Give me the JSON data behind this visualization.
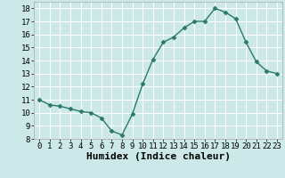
{
  "x": [
    0,
    1,
    2,
    3,
    4,
    5,
    6,
    7,
    8,
    9,
    10,
    11,
    12,
    13,
    14,
    15,
    16,
    17,
    18,
    19,
    20,
    21,
    22,
    23
  ],
  "y": [
    11.0,
    10.6,
    10.5,
    10.3,
    10.1,
    10.0,
    9.6,
    8.6,
    8.3,
    9.9,
    12.2,
    14.1,
    15.4,
    15.8,
    16.5,
    17.0,
    17.0,
    18.0,
    17.7,
    17.2,
    15.4,
    13.9,
    13.2,
    13.0
  ],
  "line_color": "#2a7a6a",
  "marker": "D",
  "marker_size": 2.5,
  "bg_color": "#cce8e8",
  "grid_color": "#ffffff",
  "xlabel": "Humidex (Indice chaleur)",
  "xlabel_fontsize": 8,
  "xlim": [
    -0.5,
    23.5
  ],
  "ylim": [
    8,
    18.5
  ],
  "yticks": [
    8,
    9,
    10,
    11,
    12,
    13,
    14,
    15,
    16,
    17,
    18
  ],
  "xtick_labels": [
    "0",
    "1",
    "2",
    "3",
    "4",
    "5",
    "6",
    "7",
    "8",
    "9",
    "10",
    "11",
    "12",
    "13",
    "14",
    "15",
    "16",
    "17",
    "18",
    "19",
    "20",
    "21",
    "22",
    "23"
  ],
  "tick_fontsize": 6.5,
  "linewidth": 1.0
}
